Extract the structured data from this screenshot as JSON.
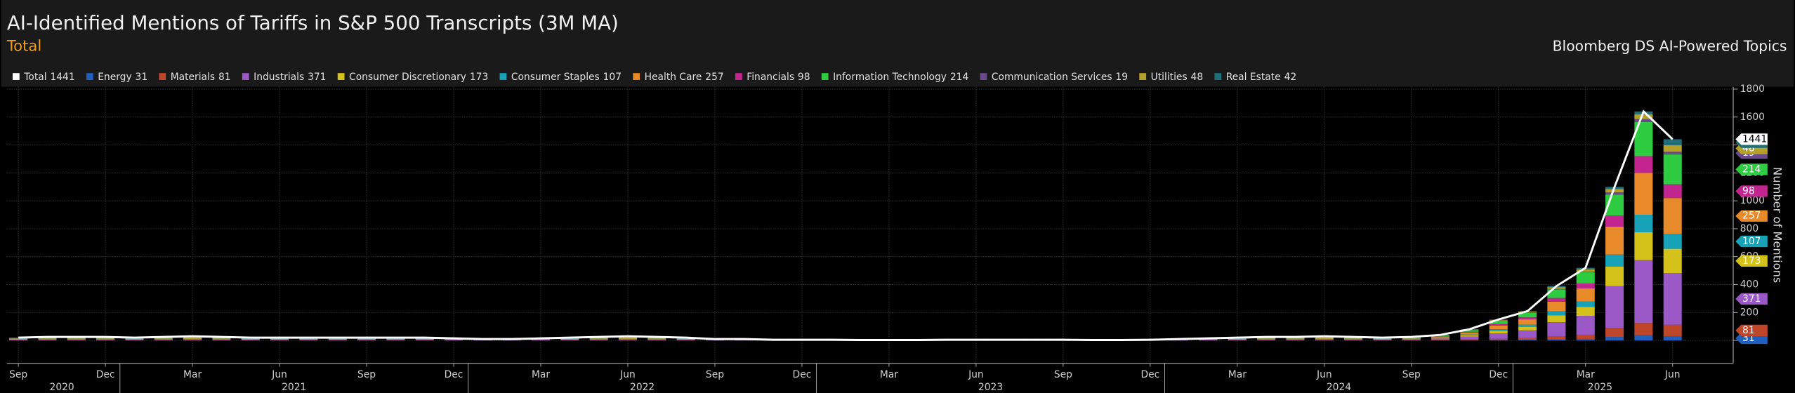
{
  "chart_data": {
    "type": "stacked_bar",
    "title": "AI-Identified Mentions of Tariffs in S&P 500 Transcripts (3M MA)",
    "subtitle": "Total",
    "source": "Bloomberg DS AI-Powered Topics",
    "y_axis_label": "Number of Mentions",
    "categories": [
      "Sep",
      null,
      null,
      "Dec",
      null,
      null,
      "Mar",
      null,
      null,
      "Jun",
      null,
      null,
      "Sep",
      null,
      null,
      "Dec",
      null,
      null,
      "Mar",
      null,
      null,
      "Jun",
      null,
      null,
      "Sep",
      null,
      null,
      "Dec",
      null,
      null,
      "Mar",
      null,
      null,
      "Jun",
      null,
      null,
      "Sep",
      null,
      null,
      "Dec",
      null,
      null,
      "Mar",
      null,
      null,
      "Jun",
      null,
      null,
      "Sep",
      null,
      null,
      "Dec",
      null,
      null,
      "Mar",
      null,
      null,
      "Jun"
    ],
    "years": [
      "2020",
      "2021",
      "2022",
      "2023",
      "2024",
      "2025"
    ],
    "ylim": [
      0,
      1800
    ],
    "yticks": [
      0,
      200,
      400,
      600,
      800,
      1000,
      1200,
      1400,
      1600,
      1800
    ],
    "grid": true,
    "series": [
      {
        "name": "Total",
        "type": "line",
        "color": "#ffffff",
        "values": [
          20,
          25,
          25,
          25,
          20,
          25,
          30,
          25,
          20,
          20,
          20,
          20,
          20,
          20,
          20,
          15,
          10,
          10,
          15,
          20,
          25,
          30,
          25,
          20,
          10,
          10,
          5,
          5,
          5,
          3,
          3,
          3,
          5,
          5,
          5,
          5,
          5,
          3,
          3,
          5,
          10,
          15,
          20,
          25,
          25,
          30,
          25,
          20,
          25,
          40,
          80,
          150,
          210,
          390,
          520,
          1100,
          1640,
          1441
        ]
      },
      {
        "name": "Energy",
        "color": "#1f5fbf",
        "values": [
          1,
          1,
          1,
          1,
          1,
          1,
          1,
          1,
          1,
          1,
          1,
          1,
          1,
          1,
          1,
          0,
          0,
          0,
          0,
          1,
          1,
          1,
          1,
          1,
          0,
          0,
          0,
          0,
          0,
          0,
          0,
          0,
          0,
          0,
          0,
          0,
          0,
          0,
          0,
          0,
          0,
          0,
          1,
          1,
          1,
          1,
          1,
          1,
          1,
          1,
          2,
          3,
          5,
          8,
          11,
          25,
          35,
          31
        ]
      },
      {
        "name": "Materials",
        "color": "#c0462a",
        "values": [
          2,
          2,
          2,
          2,
          2,
          2,
          2,
          2,
          2,
          2,
          2,
          2,
          2,
          2,
          2,
          1,
          1,
          1,
          1,
          2,
          2,
          2,
          2,
          2,
          1,
          1,
          0,
          0,
          0,
          0,
          0,
          0,
          0,
          0,
          0,
          0,
          0,
          0,
          0,
          0,
          1,
          1,
          2,
          2,
          2,
          2,
          2,
          2,
          2,
          3,
          5,
          9,
          12,
          23,
          30,
          65,
          90,
          81
        ]
      },
      {
        "name": "Industrials",
        "color": "#9b59c8",
        "values": [
          5,
          6,
          6,
          6,
          5,
          6,
          7,
          6,
          5,
          5,
          5,
          5,
          5,
          5,
          5,
          4,
          3,
          3,
          4,
          5,
          6,
          7,
          6,
          5,
          3,
          3,
          2,
          2,
          2,
          1,
          1,
          1,
          2,
          2,
          2,
          2,
          2,
          1,
          1,
          2,
          3,
          4,
          5,
          6,
          6,
          7,
          6,
          5,
          6,
          10,
          20,
          38,
          55,
          100,
          135,
          300,
          450,
          371
        ]
      },
      {
        "name": "Consumer Discretionary",
        "color": "#d4c21a",
        "values": [
          3,
          4,
          4,
          4,
          3,
          4,
          5,
          4,
          3,
          3,
          3,
          3,
          3,
          3,
          3,
          2,
          1,
          1,
          2,
          3,
          4,
          5,
          4,
          3,
          1,
          1,
          1,
          1,
          1,
          1,
          1,
          1,
          1,
          1,
          1,
          1,
          1,
          1,
          1,
          1,
          1,
          2,
          3,
          4,
          4,
          5,
          4,
          3,
          4,
          5,
          10,
          19,
          26,
          48,
          65,
          140,
          200,
          173
        ]
      },
      {
        "name": "Consumer Staples",
        "color": "#17a2b8",
        "values": [
          2,
          2,
          2,
          2,
          2,
          2,
          3,
          2,
          2,
          2,
          2,
          2,
          2,
          2,
          2,
          1,
          1,
          1,
          1,
          2,
          2,
          3,
          2,
          2,
          1,
          1,
          0,
          0,
          0,
          0,
          0,
          0,
          0,
          0,
          0,
          0,
          0,
          0,
          0,
          0,
          1,
          1,
          2,
          2,
          2,
          3,
          2,
          2,
          2,
          3,
          6,
          11,
          15,
          29,
          38,
          85,
          125,
          107
        ]
      },
      {
        "name": "Health Care",
        "color": "#e8892a",
        "values": [
          3,
          4,
          4,
          4,
          3,
          4,
          5,
          4,
          3,
          3,
          3,
          3,
          3,
          3,
          3,
          3,
          2,
          2,
          3,
          3,
          4,
          5,
          4,
          3,
          2,
          2,
          1,
          1,
          1,
          1,
          1,
          1,
          1,
          1,
          1,
          1,
          1,
          1,
          1,
          1,
          2,
          3,
          3,
          4,
          4,
          5,
          4,
          3,
          4,
          7,
          14,
          27,
          38,
          70,
          94,
          200,
          300,
          257
        ]
      },
      {
        "name": "Financials",
        "color": "#c2258f",
        "values": [
          1,
          2,
          2,
          2,
          1,
          2,
          2,
          2,
          1,
          1,
          1,
          1,
          1,
          1,
          1,
          1,
          1,
          1,
          1,
          1,
          2,
          2,
          2,
          1,
          1,
          1,
          0,
          0,
          0,
          0,
          0,
          0,
          0,
          0,
          0,
          0,
          0,
          0,
          0,
          0,
          1,
          1,
          1,
          2,
          2,
          2,
          2,
          1,
          2,
          3,
          5,
          10,
          14,
          26,
          35,
          80,
          120,
          98
        ]
      },
      {
        "name": "Information Technology",
        "color": "#2ecc40",
        "values": [
          2,
          3,
          3,
          3,
          2,
          3,
          4,
          3,
          2,
          2,
          2,
          2,
          2,
          2,
          2,
          2,
          1,
          1,
          2,
          2,
          3,
          4,
          3,
          2,
          1,
          1,
          1,
          1,
          1,
          0,
          0,
          0,
          1,
          1,
          1,
          1,
          1,
          0,
          0,
          1,
          1,
          2,
          2,
          3,
          3,
          4,
          3,
          2,
          3,
          6,
          13,
          24,
          33,
          62,
          80,
          150,
          245,
          214
        ]
      },
      {
        "name": "Communication Services",
        "color": "#6a4a8a",
        "values": [
          0,
          0,
          0,
          0,
          0,
          0,
          0,
          0,
          0,
          0,
          0,
          0,
          0,
          0,
          0,
          0,
          0,
          0,
          0,
          0,
          0,
          0,
          0,
          0,
          0,
          0,
          0,
          0,
          0,
          0,
          0,
          0,
          0,
          0,
          0,
          0,
          0,
          0,
          0,
          0,
          0,
          0,
          0,
          0,
          0,
          0,
          0,
          0,
          0,
          0,
          1,
          2,
          2,
          4,
          5,
          15,
          20,
          19
        ]
      },
      {
        "name": "Utilities",
        "color": "#b5a02a",
        "values": [
          1,
          1,
          1,
          1,
          1,
          1,
          1,
          1,
          1,
          1,
          1,
          1,
          1,
          1,
          1,
          1,
          0,
          0,
          1,
          1,
          1,
          1,
          1,
          1,
          0,
          0,
          0,
          0,
          0,
          0,
          0,
          0,
          0,
          0,
          0,
          0,
          0,
          0,
          0,
          0,
          0,
          1,
          1,
          1,
          1,
          1,
          1,
          1,
          1,
          1,
          2,
          4,
          6,
          12,
          15,
          25,
          35,
          48
        ]
      },
      {
        "name": "Real Estate",
        "color": "#1f6f7a",
        "values": [
          0,
          0,
          0,
          0,
          0,
          0,
          0,
          0,
          0,
          0,
          0,
          0,
          0,
          0,
          0,
          0,
          0,
          0,
          0,
          0,
          0,
          0,
          0,
          0,
          0,
          0,
          0,
          0,
          0,
          0,
          0,
          0,
          0,
          0,
          0,
          0,
          0,
          0,
          0,
          0,
          0,
          0,
          0,
          0,
          0,
          0,
          0,
          0,
          0,
          1,
          2,
          3,
          4,
          8,
          12,
          15,
          20,
          42
        ]
      }
    ]
  }
}
